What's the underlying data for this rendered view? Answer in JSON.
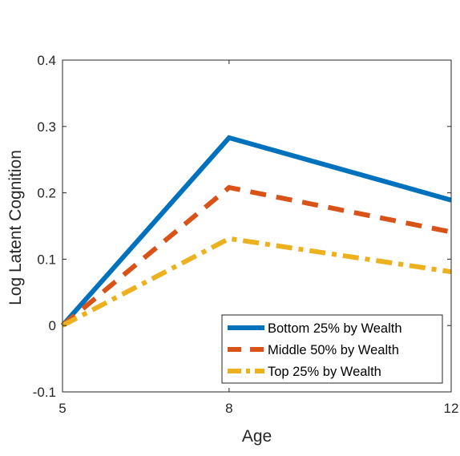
{
  "chart_data": {
    "type": "line",
    "title": "",
    "xlabel": "Age",
    "ylabel": "Log Latent Cognition",
    "x": [
      5,
      8,
      12
    ],
    "xlim": [
      5,
      12
    ],
    "ylim": [
      -0.1,
      0.4
    ],
    "xticks": [
      5,
      8,
      12
    ],
    "xtick_labels": [
      "5",
      "8",
      "12"
    ],
    "yticks": [
      -0.1,
      0,
      0.1,
      0.2,
      0.3,
      0.4
    ],
    "ytick_labels": [
      "-0.1",
      "0",
      "0.1",
      "0.2",
      "0.3",
      "0.4"
    ],
    "grid": false,
    "legend_position": "bottom-right",
    "series": [
      {
        "name": "Bottom 25% by Wealth",
        "values": [
          0,
          0.283,
          0.189
        ],
        "color": "#0072BD",
        "line_style": "solid"
      },
      {
        "name": "Middle 50% by Wealth",
        "values": [
          0,
          0.208,
          0.141
        ],
        "color": "#D95319",
        "line_style": "dashed"
      },
      {
        "name": "Top 25% by Wealth",
        "values": [
          0,
          0.131,
          0.081
        ],
        "color": "#EDB120",
        "line_style": "dash-dot"
      }
    ]
  }
}
